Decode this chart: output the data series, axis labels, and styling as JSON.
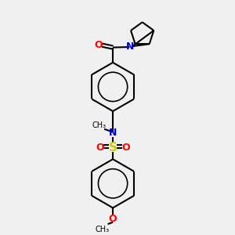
{
  "bg_color": "#f0f0f0",
  "bond_color": "#000000",
  "N_color": "#0000cc",
  "O_color": "#ff0000",
  "S_color": "#cccc00",
  "lw": 1.5,
  "figsize": [
    3.0,
    3.0
  ],
  "dpi": 100,
  "xlim": [
    0,
    10
  ],
  "ylim": [
    0,
    10
  ]
}
